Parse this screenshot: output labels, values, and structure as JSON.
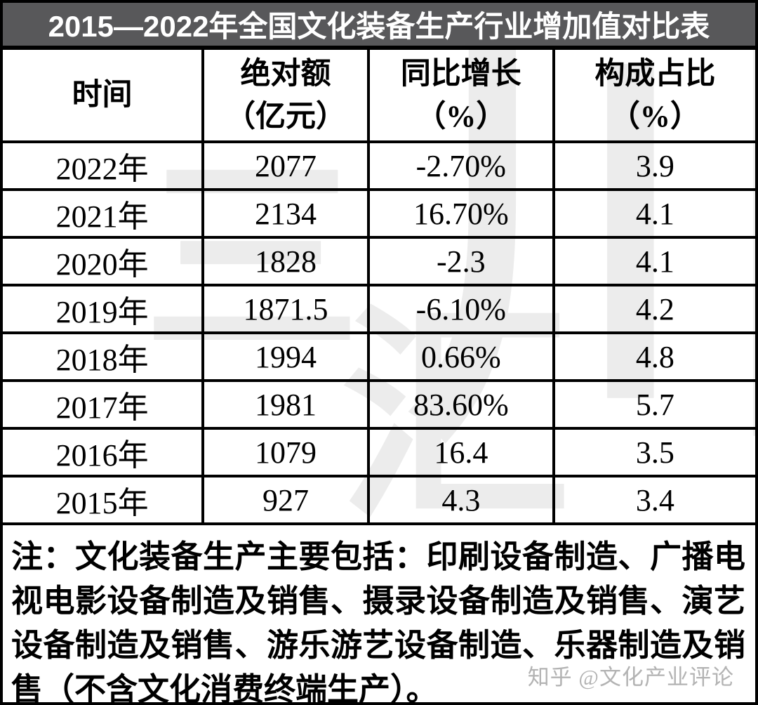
{
  "title": "2015—2022年全国文化装备生产行业增加值对比表",
  "columns": [
    {
      "title": "时间",
      "subtitle": ""
    },
    {
      "title": "绝对额",
      "subtitle": "（亿元）"
    },
    {
      "title": "同比增长",
      "subtitle": "（%）"
    },
    {
      "title": "构成占比",
      "subtitle": "（%）"
    }
  ],
  "rows": [
    {
      "year": "2022年",
      "absolute": "2077",
      "yoy": "-2.70%",
      "share": "3.9"
    },
    {
      "year": "2021年",
      "absolute": "2134",
      "yoy": "16.70%",
      "share": "4.1"
    },
    {
      "year": "2020年",
      "absolute": "1828",
      "yoy": "-2.3",
      "share": "4.1"
    },
    {
      "year": "2019年",
      "absolute": "1871.5",
      "yoy": "-6.10%",
      "share": "4.2"
    },
    {
      "year": "2018年",
      "absolute": "1994",
      "yoy": "0.66%",
      "share": "4.8"
    },
    {
      "year": "2017年",
      "absolute": "1981",
      "yoy": "83.60%",
      "share": "5.7"
    },
    {
      "year": "2016年",
      "absolute": "1079",
      "yoy": "16.4",
      "share": "3.5"
    },
    {
      "year": "2015年",
      "absolute": "927",
      "yoy": "4.3",
      "share": "3.4"
    }
  ],
  "note": "注：文化装备生产主要包括：印刷设备制造、广播电视电影设备制造及销售、摄录设备制造及销售、演艺设备制造及销售、游乐游艺设备制造、乐器制造及销售（不含文化消费终端生产）。",
  "watermark": {
    "characters": [
      "三",
      "川",
      "汇"
    ],
    "credit": "知乎 @文化产业评论"
  },
  "colors": {
    "title_bar_bg": "#58585a",
    "title_text": "#ffffff",
    "grid_border": "#000000",
    "watermark_gray": "#ececec",
    "credit_gray": "#b3b3b3"
  },
  "chart_data": {
    "type": "table",
    "title": "2015—2022年全国文化装备生产行业增加值对比表",
    "columns": [
      "时间",
      "绝对额（亿元）",
      "同比增长（%）",
      "构成占比（%）"
    ],
    "rows": [
      [
        "2022年",
        2077,
        "-2.70%",
        3.9
      ],
      [
        "2021年",
        2134,
        "16.70%",
        4.1
      ],
      [
        "2020年",
        1828,
        "-2.3",
        4.1
      ],
      [
        "2019年",
        1871.5,
        "-6.10%",
        4.2
      ],
      [
        "2018年",
        1994,
        "0.66%",
        4.8
      ],
      [
        "2017年",
        1981,
        "83.60%",
        5.7
      ],
      [
        "2016年",
        1079,
        "16.4",
        3.5
      ],
      [
        "2015年",
        927,
        "4.3",
        3.4
      ]
    ],
    "note": "注：文化装备生产主要包括：印刷设备制造、广播电视电影设备制造及销售、摄录设备制造及销售、演艺设备制造及销售、游乐游艺设备制造、乐器制造及销售（不含文化消费终端生产）。"
  }
}
